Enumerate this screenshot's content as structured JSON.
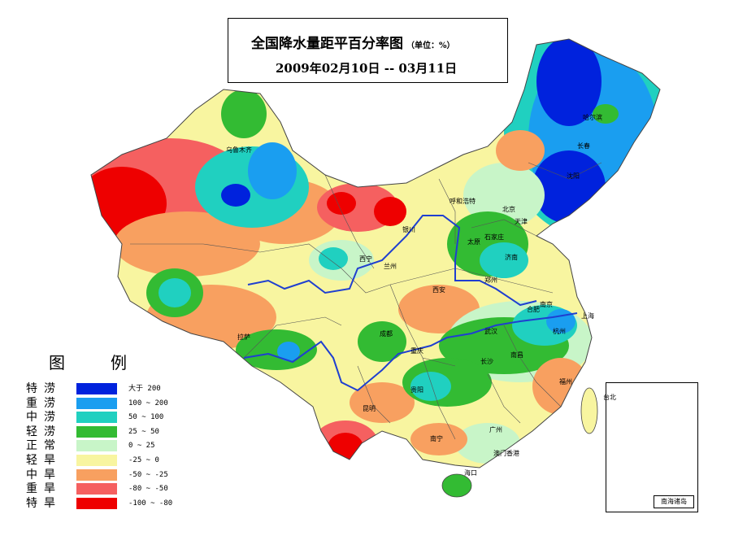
{
  "title": {
    "main": "全国降水量距平百分率图",
    "unit": "（单位：%）",
    "date_range": "2009年02月10日 -- 03月11日"
  },
  "legend": {
    "title": "图例",
    "items": [
      {
        "label": "特涝",
        "range": "大于 200",
        "color": "#0022dd"
      },
      {
        "label": "重涝",
        "range": "100 ~ 200",
        "color": "#1a9ef0"
      },
      {
        "label": "中涝",
        "range": "50 ~ 100",
        "color": "#20d0c0"
      },
      {
        "label": "轻涝",
        "range": "25 ~ 50",
        "color": "#33bb33"
      },
      {
        "label": "正常",
        "range": "0 ~ 25",
        "color": "#c8f5c8"
      },
      {
        "label": "轻旱",
        "range": "-25 ~ 0",
        "color": "#f8f5a0"
      },
      {
        "label": "中旱",
        "range": "-50 ~ -25",
        "color": "#f8a060"
      },
      {
        "label": "重旱",
        "range": "-80 ~ -50",
        "color": "#f56060"
      },
      {
        "label": "特旱",
        "range": "-100 ~ -80",
        "color": "#ee0000"
      }
    ]
  },
  "inset": {
    "label": "南海诸岛"
  },
  "cities": [
    {
      "name": "乌鲁木齐"
    },
    {
      "name": "哈尔滨"
    },
    {
      "name": "长春"
    },
    {
      "name": "沈阳"
    },
    {
      "name": "呼和浩特"
    },
    {
      "name": "北京"
    },
    {
      "name": "天津"
    },
    {
      "name": "石家庄"
    },
    {
      "name": "太原"
    },
    {
      "name": "济南"
    },
    {
      "name": "银川"
    },
    {
      "name": "西宁"
    },
    {
      "name": "兰州"
    },
    {
      "name": "西安"
    },
    {
      "name": "郑州"
    },
    {
      "name": "合肥"
    },
    {
      "name": "南京"
    },
    {
      "name": "上海"
    },
    {
      "name": "拉萨"
    },
    {
      "name": "成都"
    },
    {
      "name": "重庆"
    },
    {
      "name": "武汉"
    },
    {
      "name": "杭州"
    },
    {
      "name": "长沙"
    },
    {
      "name": "南昌"
    },
    {
      "name": "福州"
    },
    {
      "name": "贵阳"
    },
    {
      "name": "昆明"
    },
    {
      "name": "南宁"
    },
    {
      "name": "广州"
    },
    {
      "name": "澳门香港"
    },
    {
      "name": "海口"
    },
    {
      "name": "台北"
    }
  ]
}
